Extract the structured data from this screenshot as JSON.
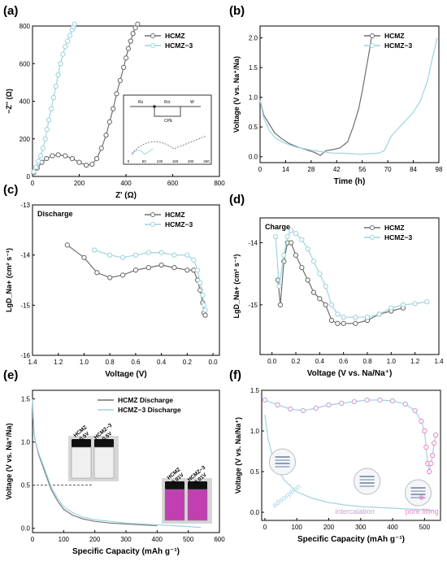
{
  "colors": {
    "hcmz": "#6e6e6e",
    "hcmz3": "#9fd3df",
    "axis": "#000000",
    "pink": "#e68bc9",
    "purple": "#c7a3d9",
    "solution_purple": "#c13fb0"
  },
  "chart_data": [
    {
      "panel": "(a)",
      "type": "scatter",
      "xlabel": "Z' (Ω)",
      "ylabel": "−Z'' (Ω)",
      "xlim": [
        0,
        800
      ],
      "ylim": [
        0,
        800
      ],
      "xticks": [
        "0",
        "200",
        "400",
        "600",
        "800"
      ],
      "yticks": [
        "0",
        "200",
        "400",
        "600",
        "800"
      ],
      "legend": [
        "HCMZ",
        "HCMZ−3"
      ],
      "legend_position": "top-right",
      "series": [
        {
          "name": "HCMZ",
          "x": [
            5,
            20,
            40,
            60,
            85,
            110,
            140,
            170,
            200,
            230,
            255,
            275,
            295,
            315,
            330,
            345,
            360,
            375,
            390,
            400,
            410,
            420,
            430,
            440,
            450
          ],
          "y": [
            20,
            45,
            75,
            95,
            110,
            115,
            110,
            95,
            75,
            60,
            65,
            95,
            150,
            220,
            290,
            360,
            440,
            510,
            580,
            630,
            680,
            720,
            760,
            790,
            810
          ]
        },
        {
          "name": "HCMZ−3",
          "x": [
            5,
            15,
            25,
            35,
            45,
            55,
            62,
            70,
            80,
            90,
            100,
            110,
            120,
            130,
            140,
            150,
            160,
            170,
            175,
            180
          ],
          "y": [
            25,
            50,
            80,
            110,
            150,
            200,
            250,
            300,
            360,
            420,
            480,
            540,
            600,
            650,
            690,
            720,
            750,
            780,
            795,
            810
          ]
        }
      ],
      "inset": {
        "xticks": [
          "0",
          "50",
          "100",
          "150",
          "200",
          "250"
        ],
        "circuit_labels": [
          "Rs",
          "Rct",
          "W",
          "CPE"
        ]
      }
    },
    {
      "panel": "(b)",
      "type": "line",
      "xlabel": "Time (h)",
      "ylabel": "Voltage (V vs. Na⁺/Na)",
      "xlim": [
        0,
        98
      ],
      "ylim": [
        -0.1,
        2.2
      ],
      "xticks": [
        "0",
        "14",
        "28",
        "42",
        "56",
        "70",
        "84",
        "98"
      ],
      "yticks": [
        "0.0",
        "0.5",
        "1.0",
        "1.5",
        "2.0"
      ],
      "legend": [
        "HCMZ",
        "HCMZ−3"
      ],
      "legend_position": "top-right",
      "series": [
        {
          "name": "HCMZ",
          "x": [
            0,
            2,
            5,
            8,
            12,
            16,
            20,
            25,
            30,
            33,
            36,
            40,
            44,
            48,
            51,
            54,
            56,
            58,
            60,
            61
          ],
          "y": [
            0.95,
            0.7,
            0.55,
            0.4,
            0.3,
            0.22,
            0.17,
            0.12,
            0.07,
            0.02,
            0.1,
            0.12,
            0.15,
            0.25,
            0.5,
            0.8,
            1.1,
            1.45,
            1.8,
            2.0
          ]
        },
        {
          "name": "HCMZ−3",
          "x": [
            0,
            2,
            5,
            8,
            12,
            16,
            20,
            25,
            30,
            35,
            40,
            45,
            50,
            55,
            60,
            65,
            68,
            72,
            78,
            84,
            88,
            92,
            94,
            96,
            97
          ],
          "y": [
            0.95,
            0.65,
            0.45,
            0.32,
            0.25,
            0.2,
            0.16,
            0.13,
            0.1,
            0.08,
            0.06,
            0.06,
            0.05,
            0.04,
            0.05,
            0.06,
            0.1,
            0.35,
            0.55,
            0.75,
            0.95,
            1.3,
            1.6,
            1.85,
            2.0
          ]
        }
      ]
    },
    {
      "panel": "(c)",
      "type": "line",
      "annotation": "Discharge",
      "xlabel": "Voltage (V)",
      "ylabel": "LgD_Na+ (cm² s⁻¹)",
      "xlim": [
        1.4,
        -0.05
      ],
      "ylim": [
        -16,
        -13
      ],
      "xticks": [
        "1.4",
        "1.2",
        "1.0",
        "0.8",
        "0.6",
        "0.4",
        "0.2",
        "0.0"
      ],
      "yticks": [
        "-13",
        "-14",
        "-15",
        "-16"
      ],
      "legend": [
        "HCMZ",
        "HCMZ−3"
      ],
      "legend_position": "top-right",
      "series": [
        {
          "name": "HCMZ",
          "x": [
            1.13,
            1.0,
            0.9,
            0.8,
            0.7,
            0.6,
            0.5,
            0.4,
            0.3,
            0.2,
            0.15,
            0.12,
            0.1,
            0.08,
            0.07,
            0.06
          ],
          "y": [
            -13.8,
            -14.05,
            -14.35,
            -14.45,
            -14.4,
            -14.3,
            -14.25,
            -14.2,
            -14.25,
            -14.3,
            -14.3,
            -14.5,
            -14.7,
            -14.95,
            -15.15,
            -15.2
          ]
        },
        {
          "name": "HCMZ−3",
          "x": [
            0.92,
            0.8,
            0.7,
            0.6,
            0.5,
            0.4,
            0.3,
            0.2,
            0.15,
            0.12,
            0.1,
            0.08,
            0.07,
            0.06
          ],
          "y": [
            -13.9,
            -14.0,
            -14.05,
            -14.0,
            -13.95,
            -13.95,
            -14.0,
            -14.0,
            -14.1,
            -14.3,
            -14.55,
            -14.8,
            -15.0,
            -15.1
          ]
        }
      ]
    },
    {
      "panel": "(d)",
      "type": "line",
      "annotation": "Charge",
      "xlabel": "Voltage (V vs. Na/Na⁺)",
      "ylabel": "LgD_Na+ (cm² s⁻¹)",
      "xlim": [
        -0.1,
        1.4
      ],
      "ylim": [
        -15.8,
        -13.6
      ],
      "xticks": [
        "0.0",
        "0.2",
        "0.4",
        "0.6",
        "0.8",
        "1.0",
        "1.2",
        "1.4"
      ],
      "yticks": [
        "-14",
        "-15"
      ],
      "legend": [
        "HCMZ",
        "HCMZ−3"
      ],
      "legend_position": "top-right",
      "series": [
        {
          "name": "HCMZ",
          "x": [
            0.05,
            0.07,
            0.1,
            0.13,
            0.16,
            0.2,
            0.25,
            0.3,
            0.35,
            0.4,
            0.45,
            0.5,
            0.55,
            0.6,
            0.7,
            0.8,
            0.9,
            1.0,
            1.1
          ],
          "y": [
            -14.6,
            -15.0,
            -14.3,
            -14.0,
            -14.0,
            -14.2,
            -14.4,
            -14.6,
            -14.8,
            -14.9,
            -15.0,
            -15.25,
            -15.3,
            -15.3,
            -15.3,
            -15.25,
            -15.15,
            -15.1,
            -15.05
          ]
        },
        {
          "name": "HCMZ−3",
          "x": [
            0.03,
            0.06,
            0.1,
            0.13,
            0.16,
            0.2,
            0.25,
            0.3,
            0.35,
            0.4,
            0.45,
            0.5,
            0.55,
            0.6,
            0.7,
            0.8,
            0.9,
            1.0,
            1.1,
            1.2,
            1.3
          ],
          "y": [
            -13.9,
            -14.7,
            -14.2,
            -13.9,
            -13.8,
            -13.85,
            -13.95,
            -14.1,
            -14.3,
            -14.5,
            -14.7,
            -15.0,
            -15.15,
            -15.2,
            -15.2,
            -15.2,
            -15.15,
            -15.05,
            -15.0,
            -14.98,
            -14.95
          ]
        }
      ]
    },
    {
      "panel": "(e)",
      "type": "line",
      "xlabel": "Specific Capacity (mAh g⁻¹)",
      "ylabel": "Voltage (V vs. Na⁺/Na)",
      "xlim": [
        0,
        600
      ],
      "ylim": [
        -0.05,
        1.6
      ],
      "xticks": [
        "0",
        "100",
        "200",
        "300",
        "400",
        "500",
        "600"
      ],
      "yticks": [
        "0.0",
        "0.5",
        "1.0",
        "1.5"
      ],
      "legend": [
        "HCMZ Discharge",
        "HCMZ−3 Discharge"
      ],
      "legend_position": "top-right",
      "reference_line_y": 0.5,
      "series": [
        {
          "name": "HCMZ Discharge",
          "x": [
            0,
            2,
            5,
            10,
            20,
            40,
            60,
            80,
            100,
            130,
            160,
            200,
            250,
            300,
            350,
            400
          ],
          "y": [
            1.5,
            1.3,
            1.1,
            1.0,
            0.85,
            0.65,
            0.45,
            0.32,
            0.22,
            0.15,
            0.11,
            0.08,
            0.06,
            0.05,
            0.04,
            0.03
          ]
        },
        {
          "name": "HCMZ−3 Discharge",
          "x": [
            0,
            2,
            5,
            10,
            20,
            40,
            60,
            80,
            100,
            130,
            160,
            200,
            250,
            300,
            350,
            400,
            450,
            500,
            540
          ],
          "y": [
            1.5,
            1.3,
            1.1,
            1.0,
            0.87,
            0.68,
            0.48,
            0.35,
            0.25,
            0.18,
            0.13,
            0.1,
            0.08,
            0.06,
            0.05,
            0.04,
            0.03,
            0.02,
            0.01
          ]
        }
      ],
      "vials": [
        {
          "label1": "HCMZ",
          "label2": "0.5V"
        },
        {
          "label1": "HCMZ−3",
          "label2": "0.5V"
        },
        {
          "label1": "HCMZ",
          "label2": "0.01V"
        },
        {
          "label1": "HCMZ−3",
          "label2": "0.01V"
        }
      ]
    },
    {
      "panel": "(f)",
      "type": "line",
      "xlabel": "Specific Capacity (mAh g⁻¹)",
      "ylabel": "Voltage (V vs. Na/Na⁺)",
      "xlim": [
        -10,
        550
      ],
      "ylim": [
        -0.1,
        1.5
      ],
      "xticks": [
        "0",
        "100",
        "200",
        "300",
        "400",
        "500"
      ],
      "yticks": [
        "0.0",
        "0.5",
        "1.0",
        "1.5"
      ],
      "region_labels": [
        "adsorption",
        "intercalation",
        "pore filling"
      ],
      "series": [
        {
          "name": "",
          "x": [
            0,
            10,
            30,
            60,
            100,
            150,
            200,
            250,
            300,
            350,
            400,
            450,
            500,
            530
          ],
          "y": [
            1.2,
            0.9,
            0.6,
            0.4,
            0.25,
            0.17,
            0.12,
            0.09,
            0.07,
            0.06,
            0.05,
            0.04,
            0.03,
            0.02
          ]
        },
        {
          "name": "",
          "x": [
            0,
            40,
            80,
            120,
            160,
            200,
            240,
            280,
            320,
            360,
            400,
            440,
            470,
            490,
            500,
            505,
            510,
            515,
            520,
            525,
            530,
            535
          ],
          "y": [
            1.38,
            1.32,
            1.27,
            1.25,
            1.28,
            1.32,
            1.34,
            1.36,
            1.38,
            1.38,
            1.37,
            1.33,
            1.25,
            1.12,
            1.0,
            0.8,
            0.6,
            0.5,
            0.6,
            0.7,
            0.85,
            0.95
          ]
        }
      ]
    }
  ]
}
